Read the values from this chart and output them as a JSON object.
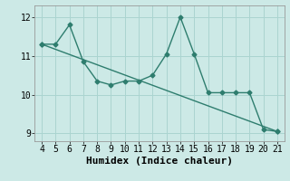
{
  "x": [
    4,
    5,
    6,
    7,
    8,
    9,
    10,
    11,
    12,
    13,
    14,
    15,
    16,
    17,
    18,
    19,
    20,
    21
  ],
  "y": [
    11.3,
    11.3,
    11.8,
    10.85,
    10.35,
    10.25,
    10.35,
    10.35,
    10.5,
    11.05,
    12.0,
    11.05,
    10.05,
    10.05,
    10.05,
    10.05,
    9.1,
    9.05
  ],
  "trend_x": [
    4,
    21
  ],
  "trend_y": [
    11.3,
    9.05
  ],
  "color": "#2e7d6e",
  "bg_color": "#cce9e6",
  "grid_color": "#aad4d0",
  "xlabel": "Humidex (Indice chaleur)",
  "xlim": [
    3.5,
    21.5
  ],
  "ylim": [
    8.8,
    12.3
  ],
  "yticks": [
    9,
    10,
    11,
    12
  ],
  "xticks": [
    4,
    5,
    6,
    7,
    8,
    9,
    10,
    11,
    12,
    13,
    14,
    15,
    16,
    17,
    18,
    19,
    20,
    21
  ],
  "marker": "D",
  "markersize": 2.5,
  "linewidth": 1.0,
  "tick_fontsize": 7,
  "label_fontsize": 8
}
